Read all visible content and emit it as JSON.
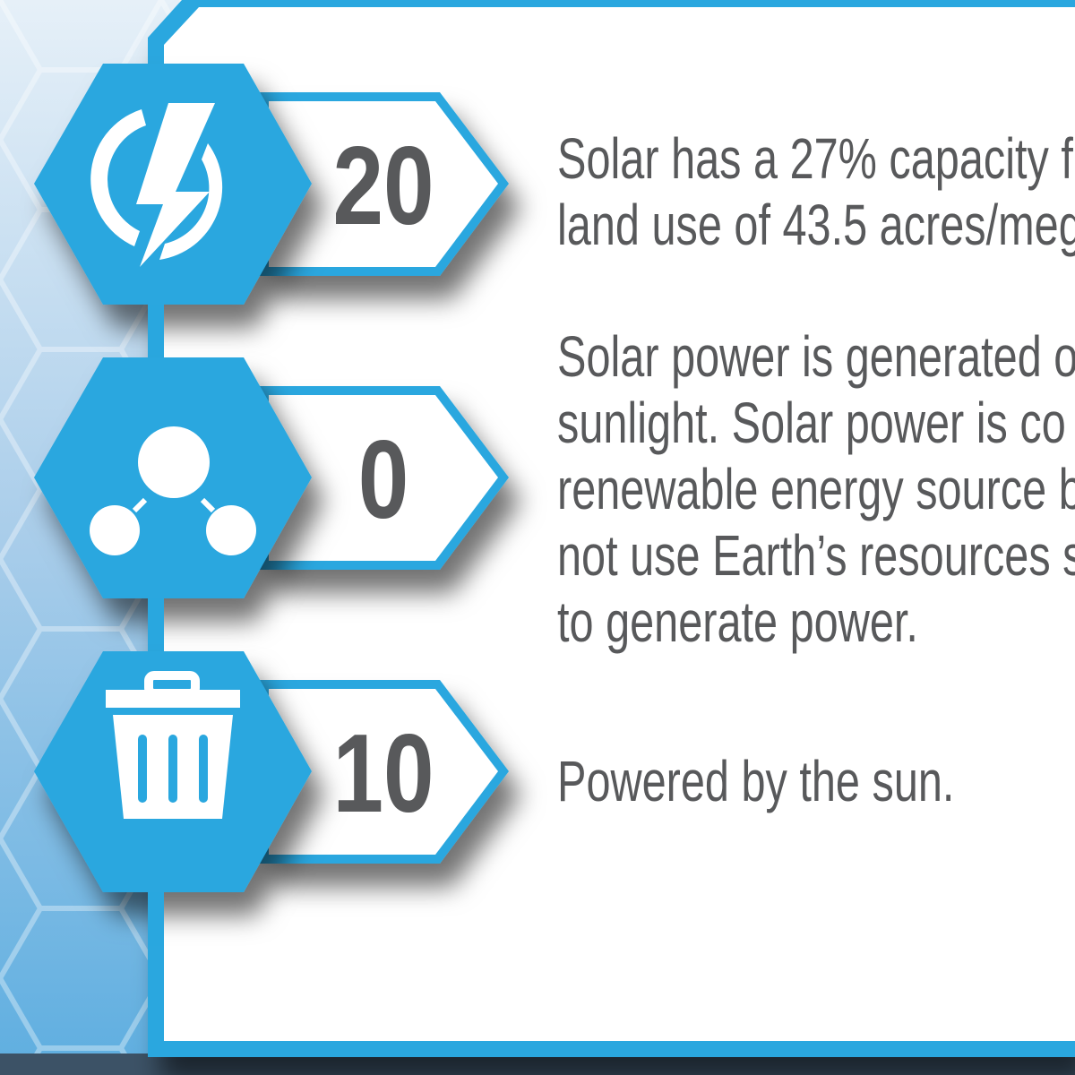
{
  "colors": {
    "accent": "#29a7df",
    "text": "#58595b",
    "background_dark": "#3c5266"
  },
  "stats": [
    {
      "icon": "lightning-power-icon",
      "value": "20"
    },
    {
      "icon": "network-nodes-icon",
      "value": "0"
    },
    {
      "icon": "trash-can-icon",
      "value": "10"
    }
  ],
  "paragraphs": [
    {
      "lines": [
        "Solar has a 27% capacity f",
        "land use of 43.5 acres/meg"
      ]
    },
    {
      "lines": [
        "Solar power is generated o",
        "sunlight. Solar power is co",
        "renewable energy source b",
        "not use Earth’s resources s",
        "to generate power."
      ]
    },
    {
      "lines": [
        "Powered by the sun."
      ]
    }
  ]
}
